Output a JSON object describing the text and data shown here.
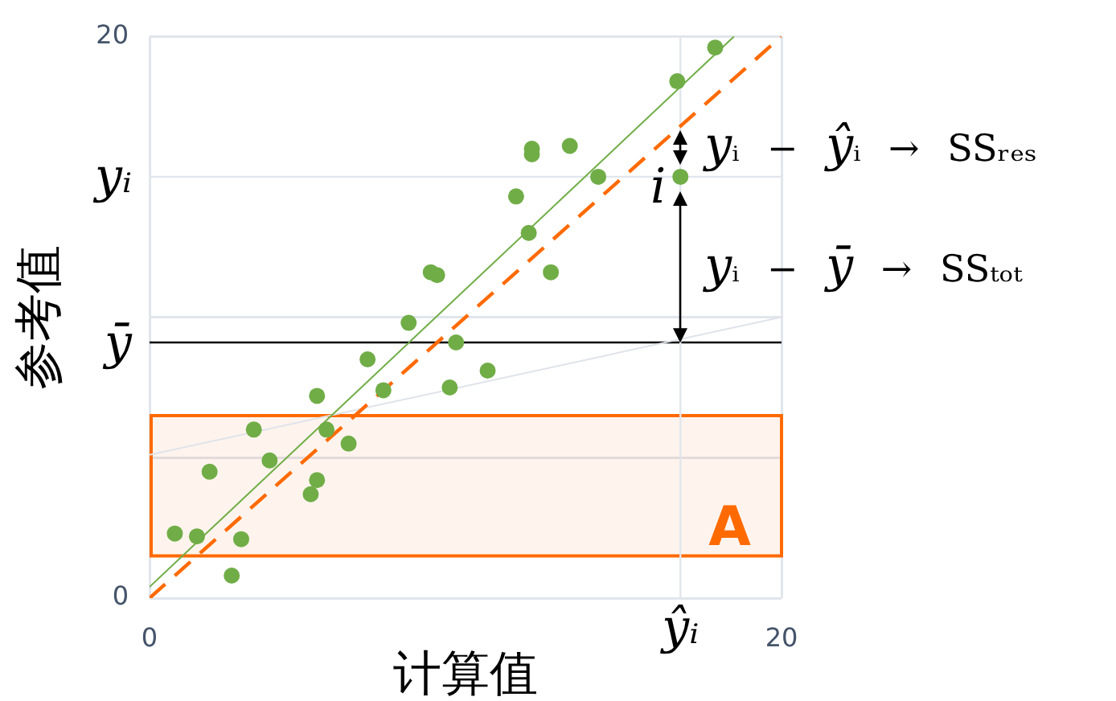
{
  "chart_data": {
    "type": "scatter",
    "xlabel": "计算值",
    "ylabel": "参考值",
    "xlim": [
      0,
      20
    ],
    "ylim": [
      0,
      20
    ],
    "xticks": [
      0,
      20
    ],
    "yticks": [
      0,
      {
        "value": 5,
        "label": null
      },
      {
        "value": 10,
        "label": null
      },
      20
    ],
    "grid": true,
    "legend": false,
    "series": [
      {
        "type": "scatter",
        "color": "#70ad47",
        "marker": "circle",
        "x": [
          0.8,
          1.5,
          1.9,
          2.6,
          2.9,
          3.3,
          3.8,
          5.1,
          5.3,
          5.3,
          5.6,
          6.3,
          6.9,
          7.4,
          8.2,
          8.9,
          9.1,
          9.5,
          9.7,
          10.7,
          11.6,
          12.0,
          12.1,
          12.1,
          12.7,
          13.3,
          14.2,
          16.7,
          16.8,
          17.9
        ],
        "values": [
          2.3,
          2.2,
          4.5,
          0.8,
          2.1,
          6.0,
          4.9,
          3.7,
          4.2,
          7.2,
          6.0,
          5.5,
          8.5,
          7.4,
          9.8,
          11.6,
          11.5,
          7.5,
          9.1,
          8.1,
          14.3,
          13.0,
          16.0,
          15.8,
          11.6,
          16.1,
          15.0,
          18.4,
          15,
          19.6
        ]
      },
      {
        "type": "line",
        "color": "#70ad47",
        "line_style": "solid",
        "marker": "none",
        "x": [
          0,
          18.5
        ],
        "values": [
          0.4,
          20
        ]
      },
      {
        "type": "line",
        "color": "#ff6a00",
        "line_style": "dashed",
        "marker": "none",
        "x": [
          0,
          20
        ],
        "values": [
          0,
          20
        ]
      },
      {
        "type": "line",
        "color": "#dfe3ea",
        "line_style": "solid",
        "marker": "none",
        "x": [
          0,
          20
        ],
        "values": [
          5.1,
          10
        ]
      }
    ],
    "ref_lines": [
      {
        "axis": "y",
        "value": 15,
        "label": "yᵢ",
        "color": "#e1e5ec"
      },
      {
        "axis": "y",
        "value": 9.1,
        "label": "ȳ",
        "color": "#000000"
      },
      {
        "axis": "x",
        "value": 16.8,
        "label": "ŷᵢ",
        "color": "#e1e5ec"
      }
    ],
    "bands": [
      {
        "axis": "y",
        "from": 1.5,
        "to": 6.5,
        "label": "A",
        "color": "#ff6a00"
      }
    ],
    "annotations": [
      {
        "text": "i",
        "x": 16.8,
        "y": 15
      },
      "yᵢ − ŷᵢ → SSᵣₑₛ",
      "yᵢ − ȳ → SSₜₒₜ"
    ]
  }
}
